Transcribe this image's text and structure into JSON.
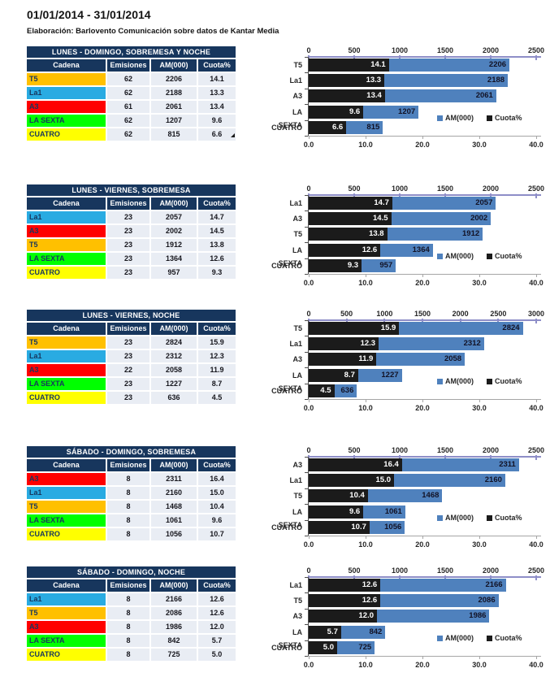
{
  "header": {
    "title": "01/01/2014 - 31/01/2014",
    "subtitle": "Elaboración: Barlovento Comunicación sobre datos de Kantar Media"
  },
  "table_columns": [
    "Cadena",
    "Emisiones",
    "AM(000)",
    "Cuota%"
  ],
  "legend": {
    "am_label": "AM(000)",
    "cuota_label": "Cuota%"
  },
  "colors": {
    "header_navy": "#17365D",
    "cell_bg": "#E9EDF4",
    "bar_blue": "#4F81BD",
    "bar_black": "#1B1B1B",
    "top_axis_line": "#8E8EC8",
    "bottom_axis_line": "#A6A6A6",
    "left_axis_line": "#4D4D4D",
    "channels": {
      "T5": "#FFC000",
      "La1": "#29ABE2",
      "A3": "#FF0000",
      "LA SEXTA": "#00FF00",
      "CUATRO": "#FFFF00"
    }
  },
  "sections": [
    {
      "table": {
        "title": "LUNES - DOMINGO, SOBREMESA Y NOCHE",
        "corner_marker": true,
        "rows": [
          {
            "cadena": "T5",
            "color": "#FFC000",
            "emisiones": "62",
            "am": "2206",
            "cuota": "14.1"
          },
          {
            "cadena": "La1",
            "color": "#29ABE2",
            "emisiones": "62",
            "am": "2188",
            "cuota": "13.3"
          },
          {
            "cadena": "A3",
            "color": "#FF0000",
            "emisiones": "61",
            "am": "2061",
            "cuota": "13.4"
          },
          {
            "cadena": "LA SEXTA",
            "color": "#00FF00",
            "emisiones": "62",
            "am": "1207",
            "cuota": "9.6"
          },
          {
            "cadena": "CUATRO",
            "color": "#FFFF00",
            "emisiones": "62",
            "am": "815",
            "cuota": "6.6"
          }
        ]
      }
    },
    {
      "table": {
        "title": "LUNES - VIERNES, SOBREMESA",
        "corner_marker": false,
        "rows": [
          {
            "cadena": "La1",
            "color": "#29ABE2",
            "emisiones": "23",
            "am": "2057",
            "cuota": "14.7"
          },
          {
            "cadena": "A3",
            "color": "#FF0000",
            "emisiones": "23",
            "am": "2002",
            "cuota": "14.5"
          },
          {
            "cadena": "T5",
            "color": "#FFC000",
            "emisiones": "23",
            "am": "1912",
            "cuota": "13.8"
          },
          {
            "cadena": "LA SEXTA",
            "color": "#00FF00",
            "emisiones": "23",
            "am": "1364",
            "cuota": "12.6"
          },
          {
            "cadena": "CUATRO",
            "color": "#FFFF00",
            "emisiones": "23",
            "am": "957",
            "cuota": "9.3"
          }
        ]
      }
    },
    {
      "table": {
        "title": "LUNES - VIERNES, NOCHE",
        "corner_marker": false,
        "rows": [
          {
            "cadena": "T5",
            "color": "#FFC000",
            "emisiones": "23",
            "am": "2824",
            "cuota": "15.9"
          },
          {
            "cadena": "La1",
            "color": "#29ABE2",
            "emisiones": "23",
            "am": "2312",
            "cuota": "12.3"
          },
          {
            "cadena": "A3",
            "color": "#FF0000",
            "emisiones": "22",
            "am": "2058",
            "cuota": "11.9"
          },
          {
            "cadena": "LA SEXTA",
            "color": "#00FF00",
            "emisiones": "23",
            "am": "1227",
            "cuota": "8.7"
          },
          {
            "cadena": "CUATRO",
            "color": "#FFFF00",
            "emisiones": "23",
            "am": "636",
            "cuota": "4.5"
          }
        ]
      }
    },
    {
      "table": {
        "title": "SÁBADO - DOMINGO, SOBREMESA",
        "corner_marker": false,
        "rows": [
          {
            "cadena": "A3",
            "color": "#FF0000",
            "emisiones": "8",
            "am": "2311",
            "cuota": "16.4"
          },
          {
            "cadena": "La1",
            "color": "#29ABE2",
            "emisiones": "8",
            "am": "2160",
            "cuota": "15.0"
          },
          {
            "cadena": "T5",
            "color": "#FFC000",
            "emisiones": "8",
            "am": "1468",
            "cuota": "10.4"
          },
          {
            "cadena": "LA SEXTA",
            "color": "#00FF00",
            "emisiones": "8",
            "am": "1061",
            "cuota": "9.6"
          },
          {
            "cadena": "CUATRO",
            "color": "#FFFF00",
            "emisiones": "8",
            "am": "1056",
            "cuota": "10.7"
          }
        ]
      }
    },
    {
      "table": {
        "title": "SÁBADO - DOMINGO, NOCHE",
        "corner_marker": false,
        "rows": [
          {
            "cadena": "La1",
            "color": "#29ABE2",
            "emisiones": "8",
            "am": "2166",
            "cuota": "12.6"
          },
          {
            "cadena": "T5",
            "color": "#FFC000",
            "emisiones": "8",
            "am": "2086",
            "cuota": "12.6"
          },
          {
            "cadena": "A3",
            "color": "#FF0000",
            "emisiones": "8",
            "am": "1986",
            "cuota": "12.0"
          },
          {
            "cadena": "LA SEXTA",
            "color": "#00FF00",
            "emisiones": "8",
            "am": "842",
            "cuota": "5.7"
          },
          {
            "cadena": "CUATRO",
            "color": "#FFFF00",
            "emisiones": "8",
            "am": "725",
            "cuota": "5.0"
          }
        ]
      }
    }
  ],
  "chart_data": [
    {
      "type": "bar",
      "orientation": "horizontal",
      "title": "LUNES - DOMINGO, SOBREMESA Y NOCHE",
      "categories": [
        "T5",
        "La1",
        "A3",
        "LA SEXTA",
        "CUATRO"
      ],
      "series": [
        {
          "name": "AM(000)",
          "axis": "top",
          "values": [
            2206,
            2188,
            2061,
            1207,
            815
          ]
        },
        {
          "name": "Cuota%",
          "axis": "bottom",
          "values": [
            14.1,
            13.3,
            13.4,
            9.6,
            6.6
          ]
        }
      ],
      "top_axis": {
        "min": 0,
        "max": 2500,
        "step": 500
      },
      "bottom_axis": {
        "min": 0,
        "max": 40,
        "step": 10
      },
      "legend_position": "inside-right",
      "grid": false,
      "value_labels": true
    },
    {
      "type": "bar",
      "orientation": "horizontal",
      "title": "LUNES - VIERNES, SOBREMESA",
      "categories": [
        "La1",
        "A3",
        "T5",
        "LA SEXTA",
        "CUATRO"
      ],
      "series": [
        {
          "name": "AM(000)",
          "axis": "top",
          "values": [
            2057,
            2002,
            1912,
            1364,
            957
          ]
        },
        {
          "name": "Cuota%",
          "axis": "bottom",
          "values": [
            14.7,
            14.5,
            13.8,
            12.6,
            9.3
          ]
        }
      ],
      "top_axis": {
        "min": 0,
        "max": 2500,
        "step": 500
      },
      "bottom_axis": {
        "min": 0,
        "max": 40,
        "step": 10
      },
      "legend_position": "inside-right",
      "grid": false,
      "value_labels": true
    },
    {
      "type": "bar",
      "orientation": "horizontal",
      "title": "LUNES - VIERNES, NOCHE",
      "categories": [
        "T5",
        "La1",
        "A3",
        "LA SEXTA",
        "CUATRO"
      ],
      "series": [
        {
          "name": "AM(000)",
          "axis": "top",
          "values": [
            2824,
            2312,
            2058,
            1227,
            636
          ]
        },
        {
          "name": "Cuota%",
          "axis": "bottom",
          "values": [
            15.9,
            12.3,
            11.9,
            8.7,
            4.5
          ]
        }
      ],
      "top_axis": {
        "min": 0,
        "max": 3000,
        "step": 500
      },
      "bottom_axis": {
        "min": 0,
        "max": 40,
        "step": 10
      },
      "legend_position": "inside-right",
      "grid": false,
      "value_labels": true
    },
    {
      "type": "bar",
      "orientation": "horizontal",
      "title": "SÁBADO - DOMINGO, SOBREMESA",
      "categories": [
        "A3",
        "La1",
        "T5",
        "LA SEXTA",
        "CUATRO"
      ],
      "series": [
        {
          "name": "AM(000)",
          "axis": "top",
          "values": [
            2311,
            2160,
            1468,
            1061,
            1056
          ]
        },
        {
          "name": "Cuota%",
          "axis": "bottom",
          "values": [
            16.4,
            15.0,
            10.4,
            9.6,
            10.7
          ]
        }
      ],
      "top_axis": {
        "min": 0,
        "max": 2500,
        "step": 500
      },
      "bottom_axis": {
        "min": 0,
        "max": 40,
        "step": 10
      },
      "legend_position": "inside-right",
      "grid": false,
      "value_labels": true
    },
    {
      "type": "bar",
      "orientation": "horizontal",
      "title": "SÁBADO - DOMINGO, NOCHE",
      "categories": [
        "La1",
        "T5",
        "A3",
        "LA SEXTA",
        "CUATRO"
      ],
      "series": [
        {
          "name": "AM(000)",
          "axis": "top",
          "values": [
            2166,
            2086,
            1986,
            842,
            725
          ]
        },
        {
          "name": "Cuota%",
          "axis": "bottom",
          "values": [
            12.6,
            12.6,
            12.0,
            5.7,
            5.0
          ]
        }
      ],
      "top_axis": {
        "min": 0,
        "max": 2500,
        "step": 500
      },
      "bottom_axis": {
        "min": 0,
        "max": 40,
        "step": 10
      },
      "legend_position": "inside-right",
      "grid": false,
      "value_labels": true
    }
  ]
}
